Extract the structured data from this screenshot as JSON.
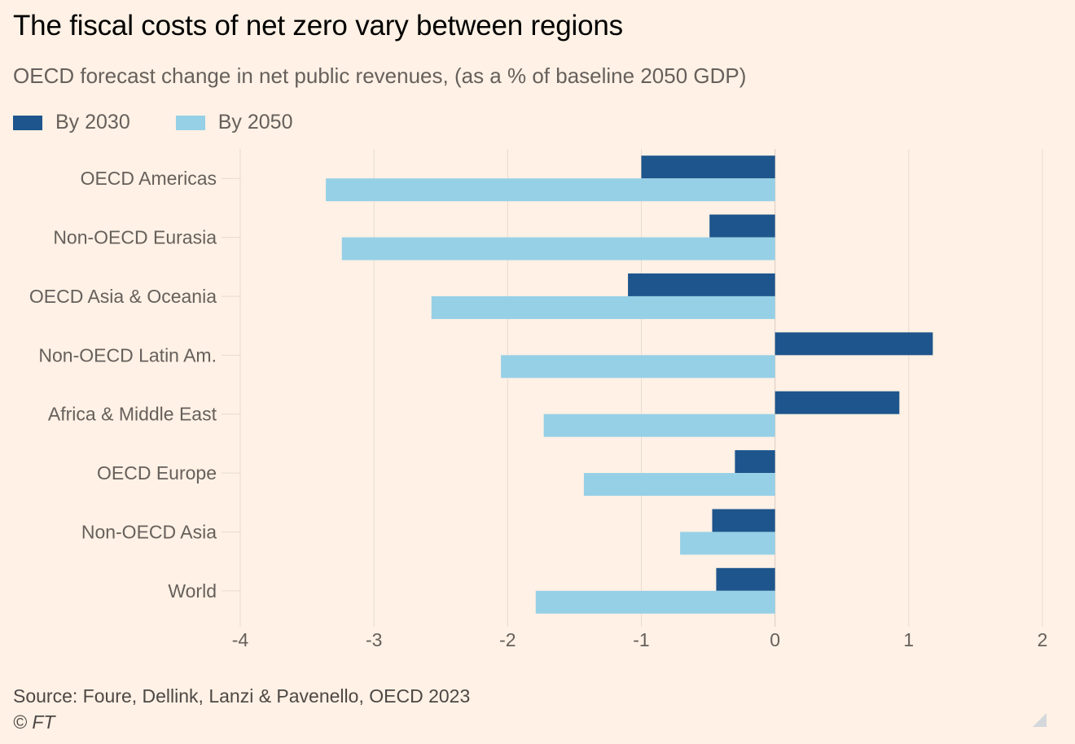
{
  "chart_data": {
    "type": "bar",
    "orientation": "horizontal",
    "title": "The fiscal costs of net zero vary between regions",
    "subtitle": "OECD forecast change in net public revenues, (as a % of baseline 2050 GDP)",
    "categories": [
      "OECD Americas",
      "Non-OECD Eurasia",
      "OECD Asia & Oceania",
      "Non-OECD Latin Am.",
      "Africa & Middle East",
      "OECD Europe",
      "Non-OECD Asia",
      "World"
    ],
    "series": [
      {
        "name": "By 2030",
        "color": "#1e558c",
        "values": [
          -1.0,
          -0.49,
          -1.1,
          1.18,
          0.93,
          -0.3,
          -0.47,
          -0.44
        ]
      },
      {
        "name": "By 2050",
        "color": "#96d0e6",
        "values": [
          -3.36,
          -3.24,
          -2.57,
          -2.05,
          -1.73,
          -1.43,
          -0.71,
          -1.79
        ]
      }
    ],
    "xlim": [
      -4,
      2
    ],
    "xticks": [
      -4,
      -3,
      -2,
      -1,
      0,
      1,
      2
    ],
    "xlabel": "",
    "ylabel": "",
    "grid": true,
    "legend_position": "top-left"
  },
  "footer": {
    "source": "Source: Foure, Dellink, Lanzi & Pavenello, OECD 2023",
    "copyright": "© FT"
  }
}
